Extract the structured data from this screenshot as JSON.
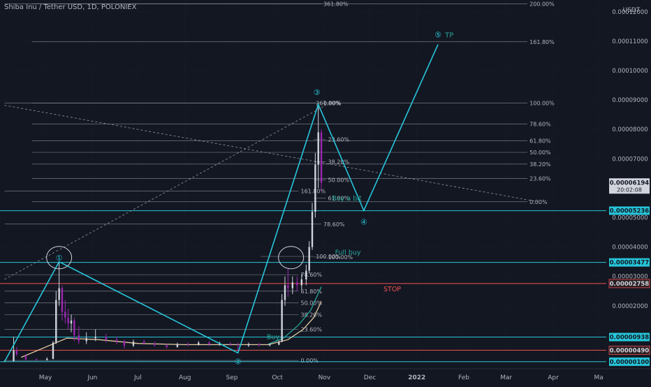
{
  "header": {
    "title": "Shiba Inu / Tether USD, 1D, POLONIEX"
  },
  "theme": {
    "background": "#131722",
    "text": "#b2b5be",
    "grid": "#2a2e39",
    "fib": "#9598a1",
    "wave": "#26c6da",
    "label": "#26a69a",
    "stop": "#ef5350",
    "price_badge": "#d1d4dc",
    "ma_green": "#26a69a",
    "ma_tan": "#e0c9a0",
    "candle_up": "#d1d4dc",
    "candle_down": "#9c27b0"
  },
  "chart_data": {
    "type": "candlestick",
    "title": "Shiba Inu / Tether USD, 1D, POLONIEX",
    "ylabel": "USDT",
    "y_axis": {
      "unit": "USDT",
      "ticks": [
        "0.00012000",
        "0.00011000",
        "0.00010000",
        "0.00009000",
        "0.00008000",
        "0.00007000",
        "0.00005000",
        "0.00004000",
        "0.00003000",
        "0.00002000"
      ],
      "range": [
        0,
        0.000124
      ]
    },
    "x_axis": {
      "ticks": [
        "May",
        "Jun",
        "Jul",
        "Aug",
        "Sep",
        "Oct",
        "Nov",
        "Dec",
        "2022",
        "Feb",
        "Mar",
        "Apr",
        "Ma"
      ],
      "range": [
        "2021-04-01",
        "2022-05-06"
      ]
    },
    "price_badges": [
      {
        "value": "0.00006194",
        "sub": "20:02:08",
        "kind": "current"
      },
      {
        "value": "0.00005236",
        "kind": "wave"
      },
      {
        "value": "0.00003477",
        "kind": "wave"
      },
      {
        "value": "0.00002758",
        "kind": "stop"
      },
      {
        "value": "0.00000938",
        "kind": "wave"
      },
      {
        "value": "0.00000490",
        "kind": "stop"
      },
      {
        "value": "0.00000100",
        "kind": "wave"
      }
    ],
    "horizontal_lines": [
      {
        "price": 5.236e-05,
        "color": "wave"
      },
      {
        "price": 3.477e-05,
        "color": "wave"
      },
      {
        "price": 9.38e-06,
        "color": "wave"
      },
      {
        "price": 1e-06,
        "color": "wave"
      },
      {
        "price": 2.758e-05,
        "color": "stop"
      },
      {
        "price": 4.9e-06,
        "color": "stop"
      }
    ],
    "fib_levels": [
      {
        "label": "200.00%",
        "price": 0.0001227,
        "from": "2021-04-22",
        "to": "2022-03-15"
      },
      {
        "label": "361.80%",
        "price": 0.0001227,
        "from": "2021-04-04",
        "to": "2021-10-30"
      },
      {
        "label": "161.80%",
        "price": 0.0001098,
        "from": "2021-04-22",
        "to": "2022-03-15"
      },
      {
        "label": "100.00%",
        "price": 8.9e-05,
        "from": "2021-04-22",
        "to": "2022-03-15"
      },
      {
        "label": "78.60%",
        "price": 8.18e-05,
        "from": "2021-04-22",
        "to": "2022-03-15"
      },
      {
        "label": "61.80%",
        "price": 7.61e-05,
        "from": "2021-04-22",
        "to": "2022-03-15"
      },
      {
        "label": "50.00%",
        "price": 7.22e-05,
        "from": "2021-04-22",
        "to": "2022-03-15"
      },
      {
        "label": "38.20%",
        "price": 6.82e-05,
        "from": "2021-04-22",
        "to": "2022-03-15"
      },
      {
        "label": "23.60%",
        "price": 6.33e-05,
        "from": "2021-04-22",
        "to": "2022-03-15"
      },
      {
        "label": "0.00%",
        "price": 5.54e-05,
        "from": "2021-04-22",
        "to": "2022-03-15"
      },
      {
        "label": "261.80%",
        "price": 8.9e-05,
        "from": "2021-04-04",
        "to": "2021-10-25"
      },
      {
        "label": "0.00%",
        "price": 8.9e-05,
        "from": "2021-10-25",
        "to": "2021-10-30"
      },
      {
        "label": "23.60%",
        "price": 7.66e-05,
        "from": "2021-10-25",
        "to": "2021-11-02"
      },
      {
        "label": "38.20%",
        "price": 6.9e-05,
        "from": "2021-10-25",
        "to": "2021-11-02"
      },
      {
        "label": "50.00%",
        "price": 6.28e-05,
        "from": "2021-10-25",
        "to": "2021-11-02"
      },
      {
        "label": "161.80%",
        "price": 5.9e-05,
        "from": "2021-04-04",
        "to": "2021-10-15"
      },
      {
        "label": "61.80%",
        "price": 5.66e-05,
        "from": "2021-10-25",
        "to": "2021-11-02"
      },
      {
        "label": "78.60%",
        "price": 4.78e-05,
        "from": "2021-04-04",
        "to": "2021-10-30"
      },
      {
        "label": "100.00%",
        "price": 3.68e-05,
        "from": "2021-09-20",
        "to": "2021-10-25"
      },
      {
        "label": "100.00%",
        "price": 3.66e-05,
        "from": "2021-10-25",
        "to": "2021-11-02"
      },
      {
        "label": "78.60%",
        "price": 3.06e-05,
        "from": "2021-04-04",
        "to": "2021-10-15"
      },
      {
        "label": "61.80%",
        "price": 2.5e-05,
        "from": "2021-04-04",
        "to": "2021-10-15"
      },
      {
        "label": "50.00%",
        "price": 2.1e-05,
        "from": "2021-04-04",
        "to": "2021-10-15"
      },
      {
        "label": "38.20%",
        "price": 1.7e-05,
        "from": "2021-04-04",
        "to": "2021-10-15"
      },
      {
        "label": "23.60%",
        "price": 1.2e-05,
        "from": "2021-04-04",
        "to": "2021-10-15"
      },
      {
        "label": "0.00%",
        "price": 1.4e-06,
        "from": "2021-04-04",
        "to": "2021-10-15"
      }
    ],
    "wave_path": [
      {
        "date": "2021-04-04",
        "price": 1e-06
      },
      {
        "date": "2021-05-10",
        "price": 3.5e-05
      },
      {
        "date": "2021-09-05",
        "price": 4e-06
      },
      {
        "date": "2021-10-28",
        "price": 8.85e-05
      },
      {
        "date": "2021-11-27",
        "price": 5.24e-05
      },
      {
        "date": "2022-01-15",
        "price": 0.0001089
      }
    ],
    "wave_labels": [
      {
        "text": "①",
        "date": "2021-05-10",
        "price": 3.63e-05
      },
      {
        "text": "②",
        "date": "2021-09-05",
        "price": 1.1e-06
      },
      {
        "text": "③",
        "date": "2021-10-27",
        "price": 9.26e-05
      },
      {
        "text": "④",
        "date": "2021-11-27",
        "price": 4.86e-05
      },
      {
        "text": "⑤",
        "date": "2022-01-15",
        "price": 0.0001123
      }
    ],
    "tp_label": "TP",
    "annotations": [
      {
        "text": "Buy a bit",
        "date": "2021-11-06",
        "price": 5.68e-05
      },
      {
        "text": "Full buy",
        "date": "2021-11-08",
        "price": 3.84e-05
      },
      {
        "text": "STOP",
        "date": "2021-12-10",
        "price": 2.59e-05
      },
      {
        "text": "Buy",
        "date": "2021-09-24",
        "price": 9.6e-06
      }
    ],
    "trend_lines": [
      {
        "from": {
          "date": "2021-04-04",
          "price": 8.82e-05
        },
        "to": {
          "date": "2022-03-22",
          "price": 5.54e-05
        }
      },
      {
        "from": {
          "date": "2021-04-04",
          "price": 2.9e-05
        },
        "to": {
          "date": "2021-11-02",
          "price": 8.82e-05
        }
      }
    ],
    "ellipses": [
      {
        "date": "2021-05-10",
        "price": 3.64e-05
      },
      {
        "date": "2021-10-10",
        "price": 3.64e-05
      }
    ],
    "ohlc": [
      {
        "d": "2021-04-04",
        "o": 1e-06,
        "h": 1.5e-06,
        "l": 9e-07,
        "c": 1.2e-06
      },
      {
        "d": "2021-04-10",
        "o": 1.2e-06,
        "h": 9.5e-06,
        "l": 1.1e-06,
        "c": 4.8e-06
      },
      {
        "d": "2021-04-12",
        "o": 4.8e-06,
        "h": 6e-06,
        "l": 3e-06,
        "c": 3.5e-06
      },
      {
        "d": "2021-04-18",
        "o": 3e-06,
        "h": 3.5e-06,
        "l": 1.5e-06,
        "c": 1.8e-06
      },
      {
        "d": "2021-04-25",
        "o": 1.8e-06,
        "h": 2.2e-06,
        "l": 1.4e-06,
        "c": 1.6e-06
      },
      {
        "d": "2021-05-02",
        "o": 1.6e-06,
        "h": 2.5e-06,
        "l": 1.4e-06,
        "c": 2e-06
      },
      {
        "d": "2021-05-06",
        "o": 2e-06,
        "h": 8e-06,
        "l": 1.8e-06,
        "c": 7.5e-06
      },
      {
        "d": "2021-05-08",
        "o": 7.5e-06,
        "h": 2.5e-05,
        "l": 7e-06,
        "c": 2.2e-05
      },
      {
        "d": "2021-05-10",
        "o": 2.2e-05,
        "h": 3.5e-05,
        "l": 2e-05,
        "c": 2.6e-05
      },
      {
        "d": "2021-05-12",
        "o": 2.6e-05,
        "h": 2.7e-05,
        "l": 1.5e-05,
        "c": 1.8e-05
      },
      {
        "d": "2021-05-14",
        "o": 1.8e-05,
        "h": 2.2e-05,
        "l": 1.4e-05,
        "c": 1.6e-05
      },
      {
        "d": "2021-05-16",
        "o": 1.6e-05,
        "h": 1.9e-05,
        "l": 1.2e-05,
        "c": 1.4e-05
      },
      {
        "d": "2021-05-18",
        "o": 1.4e-05,
        "h": 1.7e-05,
        "l": 1.1e-05,
        "c": 1.5e-05
      },
      {
        "d": "2021-05-20",
        "o": 1.5e-05,
        "h": 1.6e-05,
        "l": 8e-06,
        "c": 1e-05
      },
      {
        "d": "2021-05-23",
        "o": 1e-05,
        "h": 1.3e-05,
        "l": 7e-06,
        "c": 8e-06
      },
      {
        "d": "2021-05-28",
        "o": 8e-06,
        "h": 1.1e-05,
        "l": 7e-06,
        "c": 9e-06
      },
      {
        "d": "2021-06-03",
        "o": 9e-06,
        "h": 1.2e-05,
        "l": 8e-06,
        "c": 9.5e-06
      },
      {
        "d": "2021-06-10",
        "o": 9.5e-06,
        "h": 1.05e-05,
        "l": 7.5e-06,
        "c": 8.5e-06
      },
      {
        "d": "2021-06-17",
        "o": 8.5e-06,
        "h": 9.5e-06,
        "l": 7e-06,
        "c": 8e-06
      },
      {
        "d": "2021-06-22",
        "o": 8e-06,
        "h": 8.5e-06,
        "l": 5.5e-06,
        "c": 6.5e-06
      },
      {
        "d": "2021-06-28",
        "o": 6.5e-06,
        "h": 8.5e-06,
        "l": 6e-06,
        "c": 7.8e-06
      },
      {
        "d": "2021-07-05",
        "o": 7.8e-06,
        "h": 8.5e-06,
        "l": 6.8e-06,
        "c": 7.2e-06
      },
      {
        "d": "2021-07-12",
        "o": 7.2e-06,
        "h": 7.8e-06,
        "l": 6.2e-06,
        "c": 6.6e-06
      },
      {
        "d": "2021-07-20",
        "o": 6.6e-06,
        "h": 7e-06,
        "l": 5.5e-06,
        "c": 6e-06
      },
      {
        "d": "2021-07-27",
        "o": 6e-06,
        "h": 7.5e-06,
        "l": 5.8e-06,
        "c": 7e-06
      },
      {
        "d": "2021-08-03",
        "o": 7e-06,
        "h": 7.6e-06,
        "l": 6.2e-06,
        "c": 6.8e-06
      },
      {
        "d": "2021-08-10",
        "o": 6.8e-06,
        "h": 8e-06,
        "l": 6.5e-06,
        "c": 7.5e-06
      },
      {
        "d": "2021-08-17",
        "o": 7.5e-06,
        "h": 8e-06,
        "l": 6.4e-06,
        "c": 6.9e-06
      },
      {
        "d": "2021-08-24",
        "o": 6.9e-06,
        "h": 7.8e-06,
        "l": 6.4e-06,
        "c": 7.2e-06
      },
      {
        "d": "2021-08-31",
        "o": 7.2e-06,
        "h": 7.6e-06,
        "l": 6.4e-06,
        "c": 6.8e-06
      },
      {
        "d": "2021-09-05",
        "o": 6.8e-06,
        "h": 7.5e-06,
        "l": 4.5e-06,
        "c": 6.5e-06
      },
      {
        "d": "2021-09-12",
        "o": 6.5e-06,
        "h": 7.5e-06,
        "l": 6e-06,
        "c": 7e-06
      },
      {
        "d": "2021-09-19",
        "o": 7e-06,
        "h": 7.4e-06,
        "l": 6.2e-06,
        "c": 6.6e-06
      },
      {
        "d": "2021-09-26",
        "o": 6.6e-06,
        "h": 7.2e-06,
        "l": 6.2e-06,
        "c": 6.8e-06
      },
      {
        "d": "2021-10-02",
        "o": 6.8e-06,
        "h": 8.2e-06,
        "l": 6.6e-06,
        "c": 7.8e-06
      },
      {
        "d": "2021-10-04",
        "o": 7.8e-06,
        "h": 2.4e-05,
        "l": 7.6e-06,
        "c": 2.2e-05
      },
      {
        "d": "2021-10-06",
        "o": 2.2e-05,
        "h": 3e-05,
        "l": 2e-05,
        "c": 2.7e-05
      },
      {
        "d": "2021-10-08",
        "o": 2.7e-05,
        "h": 3.3e-05,
        "l": 2.3e-05,
        "c": 2.6e-05
      },
      {
        "d": "2021-10-11",
        "o": 2.6e-05,
        "h": 3e-05,
        "l": 2.4e-05,
        "c": 2.8e-05
      },
      {
        "d": "2021-10-14",
        "o": 2.8e-05,
        "h": 3e-05,
        "l": 2.5e-05,
        "c": 2.7e-05
      },
      {
        "d": "2021-10-17",
        "o": 2.7e-05,
        "h": 3.1e-05,
        "l": 2.55e-05,
        "c": 2.9e-05
      },
      {
        "d": "2021-10-20",
        "o": 2.9e-05,
        "h": 3.4e-05,
        "l": 2.7e-05,
        "c": 3.2e-05
      },
      {
        "d": "2021-10-22",
        "o": 3.2e-05,
        "h": 4.2e-05,
        "l": 3.1e-05,
        "c": 4e-05
      },
      {
        "d": "2021-10-24",
        "o": 4e-05,
        "h": 5.5e-05,
        "l": 3.9e-05,
        "c": 5.2e-05
      },
      {
        "d": "2021-10-26",
        "o": 5.2e-05,
        "h": 7.2e-05,
        "l": 5e-05,
        "c": 6.8e-05
      },
      {
        "d": "2021-10-28",
        "o": 6.8e-05,
        "h": 8.85e-05,
        "l": 6e-05,
        "c": 7.9e-05
      },
      {
        "d": "2021-10-30",
        "o": 7.9e-05,
        "h": 8e-05,
        "l": 5.9e-05,
        "c": 6.19e-05
      }
    ],
    "ma_green": [
      {
        "date": "2021-09-25",
        "price": 7e-06
      },
      {
        "date": "2021-10-05",
        "price": 9e-06
      },
      {
        "date": "2021-10-15",
        "price": 1.35e-05
      },
      {
        "date": "2021-10-23",
        "price": 1.85e-05
      },
      {
        "date": "2021-10-30",
        "price": 2.65e-05
      }
    ],
    "ma_tan": [
      {
        "date": "2021-04-15",
        "price": 2.5e-06
      },
      {
        "date": "2021-05-15",
        "price": 9e-06
      },
      {
        "date": "2021-06-05",
        "price": 8.5e-06
      },
      {
        "date": "2021-07-01",
        "price": 7.2e-06
      },
      {
        "date": "2021-08-01",
        "price": 6.8e-06
      },
      {
        "date": "2021-09-01",
        "price": 6.8e-06
      },
      {
        "date": "2021-09-25",
        "price": 6.8e-06
      },
      {
        "date": "2021-10-08",
        "price": 8.5e-06
      },
      {
        "date": "2021-10-18",
        "price": 1.2e-05
      },
      {
        "date": "2021-10-25",
        "price": 1.6e-05
      },
      {
        "date": "2021-10-30",
        "price": 2.15e-05
      }
    ]
  }
}
